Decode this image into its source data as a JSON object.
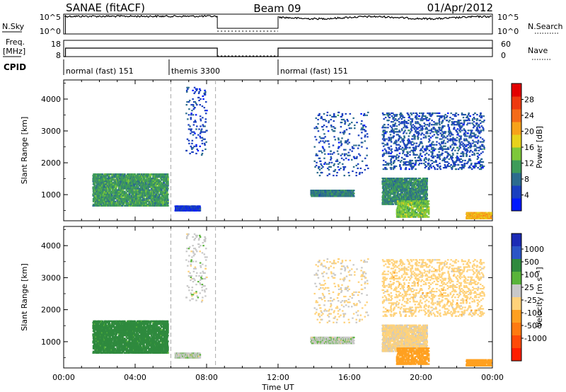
{
  "header": {
    "station": "SANAE (fitACF)",
    "beam": "Beam 09",
    "date": "01/Apr/2012"
  },
  "chart_data": {
    "type": "heatmap",
    "xlabel": "Time UT",
    "x_range_hours": [
      0,
      24
    ],
    "x_ticks": [
      {
        "hour": 0,
        "label": "00:00"
      },
      {
        "hour": 4,
        "label": "04:00"
      },
      {
        "hour": 8,
        "label": "08:00"
      },
      {
        "hour": 12,
        "label": "12:00"
      },
      {
        "hour": 16,
        "label": "16:00"
      },
      {
        "hour": 20,
        "label": "20:00"
      },
      {
        "hour": 24,
        "label": "00:00"
      }
    ],
    "top_panels": {
      "noise": {
        "left_label": "N.Sky",
        "right_label": "N.Search",
        "left_ticks": [
          "10^5",
          "10^0"
        ],
        "right_ticks": [
          "10^5",
          "10^0"
        ]
      },
      "freq_nave": {
        "left_label_line1": "Freq.",
        "left_label_line2": "[MHz]",
        "right_label": "Nave",
        "left_ticks": [
          "18",
          "8"
        ],
        "right_ticks": [
          "60",
          "0"
        ]
      },
      "cpid": {
        "label": "CPID",
        "segments": [
          {
            "start": 0.0,
            "end": 5.9,
            "name": "normal (fast) 151"
          },
          {
            "start": 5.9,
            "end": 12.0,
            "name": "themis 3300"
          },
          {
            "start": 12.0,
            "end": 24.0,
            "name": "normal (fast) 151"
          }
        ]
      }
    },
    "range_panels": [
      {
        "name": "power",
        "ylabel": "Slant Range [km]",
        "ylim": [
          180,
          4600
        ],
        "yticks": [
          1000,
          2000,
          3000,
          4000
        ],
        "colorbar": {
          "label": "Power [dB]",
          "range": [
            0,
            32
          ],
          "tick_labels": [
            "4",
            "8",
            "12",
            "16",
            "20",
            "24",
            "28"
          ],
          "colors": [
            "#0018ff",
            "#1a3fbf",
            "#2c6c8e",
            "#3e9c5a",
            "#7dc83a",
            "#e7d21c",
            "#f7a21a",
            "#f46b18",
            "#ee3a10",
            "#e30000"
          ]
        }
      },
      {
        "name": "velocity",
        "ylabel": "Slant Range [km]",
        "ylim": [
          180,
          4600
        ],
        "yticks": [
          1000,
          2000,
          3000,
          4000
        ],
        "colorbar": {
          "label": "Velocity [m s⁻¹]",
          "tick_labels": [
            "1000",
            "500",
            "100",
            "25",
            "-25",
            "-100",
            "-500",
            "-1000"
          ],
          "colors": [
            "#1c2bb5",
            "#2b55c6",
            "#2f8a3e",
            "#59b43a",
            "#c8c8c8",
            "#ffd27a",
            "#ffa020",
            "#ff7a10",
            "#ff4a08",
            "#ff1e00"
          ]
        }
      }
    ],
    "scatter_regions": [
      {
        "t0": 1.6,
        "t1": 5.8,
        "r0": 650,
        "r1": 1650,
        "density": 0.45,
        "power_mean": 11,
        "vel_mean": 200
      },
      {
        "t0": 6.2,
        "t1": 7.6,
        "r0": 500,
        "r1": 650,
        "density": 0.7,
        "power_mean": 4,
        "vel_mean": 10
      },
      {
        "t0": 13.8,
        "t1": 16.2,
        "r0": 950,
        "r1": 1150,
        "density": 0.7,
        "power_mean": 9,
        "vel_mean": 10
      },
      {
        "t0": 17.8,
        "t1": 20.3,
        "r0": 700,
        "r1": 1550,
        "density": 0.45,
        "power_mean": 10,
        "vel_mean": -40
      },
      {
        "t0": 18.6,
        "t1": 20.4,
        "r0": 300,
        "r1": 800,
        "density": 0.35,
        "power_mean": 14,
        "vel_mean": -220
      },
      {
        "t0": 22.5,
        "t1": 23.9,
        "r0": 250,
        "r1": 450,
        "density": 0.6,
        "power_mean": 20,
        "vel_mean": -260
      },
      {
        "t0": 17.8,
        "t1": 23.5,
        "r0": 1800,
        "r1": 3600,
        "density": 0.09,
        "power_mean": 6,
        "vel_mean": -60
      },
      {
        "t0": 14.0,
        "t1": 17.0,
        "r0": 1600,
        "r1": 3600,
        "density": 0.03,
        "power_mean": 6,
        "vel_mean": -30
      },
      {
        "t0": 6.8,
        "t1": 8.0,
        "r0": 2200,
        "r1": 4400,
        "density": 0.03,
        "power_mean": 5,
        "vel_mean": 0
      }
    ]
  }
}
